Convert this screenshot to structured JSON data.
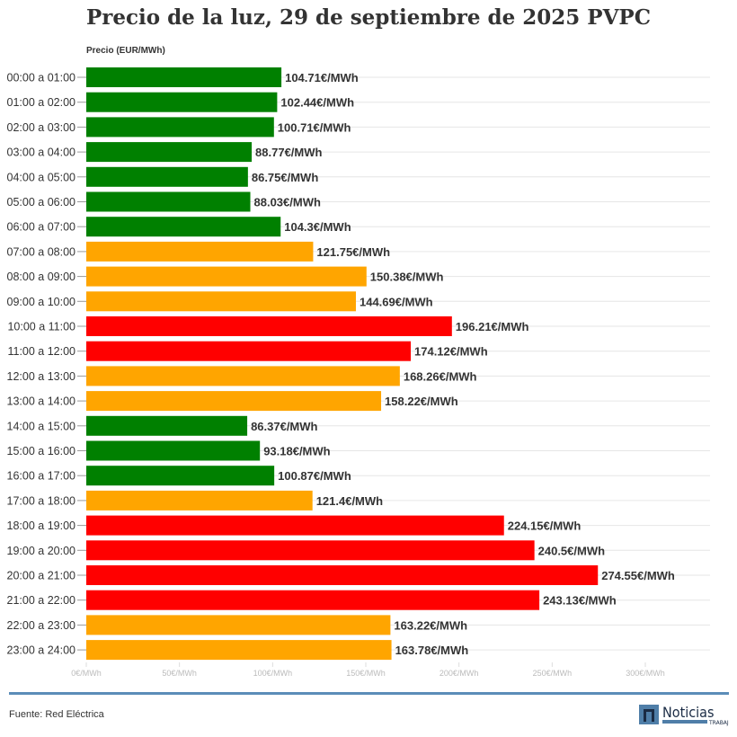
{
  "chart_data": {
    "type": "bar",
    "orientation": "horizontal",
    "title": "Precio de la luz, 29 de septiembre de 2025 PVPC",
    "ylabel": "Precio (EUR/MWh)",
    "xlim": [
      0,
      300
    ],
    "x_ticks": [
      "0€/MWh",
      "50€/MWh",
      "100€/MWh",
      "150€/MWh",
      "200€/MWh",
      "250€/MWh",
      "300€/MWh"
    ],
    "grid": true,
    "categories": [
      "00:00 a 01:00",
      "01:00 a 02:00",
      "02:00 a 03:00",
      "03:00 a 04:00",
      "04:00 a 05:00",
      "05:00 a 06:00",
      "06:00 a 07:00",
      "07:00 a 08:00",
      "08:00 a 09:00",
      "09:00 a 10:00",
      "10:00 a 11:00",
      "11:00 a 12:00",
      "12:00 a 13:00",
      "13:00 a 14:00",
      "14:00 a 15:00",
      "15:00 a 16:00",
      "16:00 a 17:00",
      "17:00 a 18:00",
      "18:00 a 19:00",
      "19:00 a 20:00",
      "20:00 a 21:00",
      "21:00 a 22:00",
      "22:00 a 23:00",
      "23:00 a 24:00"
    ],
    "values": [
      104.71,
      102.44,
      100.71,
      88.77,
      86.75,
      88.03,
      104.3,
      121.75,
      150.38,
      144.69,
      196.21,
      174.12,
      168.26,
      158.22,
      86.37,
      93.18,
      100.87,
      121.4,
      224.15,
      240.5,
      274.55,
      243.13,
      163.22,
      163.78
    ],
    "data_labels": [
      "104.71€/MWh",
      "102.44€/MWh",
      "100.71€/MWh",
      "88.77€/MWh",
      "86.75€/MWh",
      "88.03€/MWh",
      "104.3€/MWh",
      "121.75€/MWh",
      "150.38€/MWh",
      "144.69€/MWh",
      "196.21€/MWh",
      "174.12€/MWh",
      "168.26€/MWh",
      "158.22€/MWh",
      "86.37€/MWh",
      "93.18€/MWh",
      "100.87€/MWh",
      "121.4€/MWh",
      "224.15€/MWh",
      "240.5€/MWh",
      "274.55€/MWh",
      "243.13€/MWh",
      "163.22€/MWh",
      "163.78€/MWh"
    ],
    "bar_colors": [
      "green",
      "green",
      "green",
      "green",
      "green",
      "green",
      "green",
      "orange",
      "orange",
      "orange",
      "red",
      "red",
      "orange",
      "orange",
      "green",
      "green",
      "green",
      "orange",
      "red",
      "red",
      "red",
      "red",
      "orange",
      "orange"
    ],
    "palette": {
      "green": "#008000",
      "orange": "#FFA500",
      "red": "#FF0000"
    }
  },
  "footer": {
    "source": "Fuente: Red Eléctrica",
    "logo_text": "Noticias",
    "logo_subtext": "TRABAJO"
  }
}
